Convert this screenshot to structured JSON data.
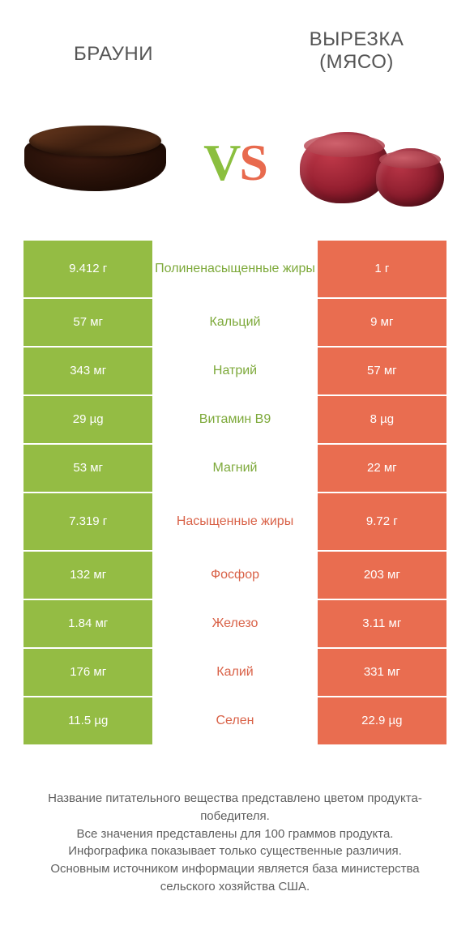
{
  "colors": {
    "green": "#94bc44",
    "orange": "#e96d50",
    "green_text": "#7da93a",
    "orange_text": "#d96248"
  },
  "left_title": "БРАУНИ",
  "right_title_line1": "ВЫРЕЗКА",
  "right_title_line2": "(МЯСО)",
  "rows": [
    {
      "left": "9.412 г",
      "mid": "Полиненасыщенные жиры",
      "right": "1 г",
      "winner": "left",
      "tall": true
    },
    {
      "left": "57 мг",
      "mid": "Кальций",
      "right": "9 мг",
      "winner": "left",
      "tall": false
    },
    {
      "left": "343 мг",
      "mid": "Натрий",
      "right": "57 мг",
      "winner": "left",
      "tall": false
    },
    {
      "left": "29 µg",
      "mid": "Витамин B9",
      "right": "8 µg",
      "winner": "left",
      "tall": false
    },
    {
      "left": "53 мг",
      "mid": "Магний",
      "right": "22 мг",
      "winner": "left",
      "tall": false
    },
    {
      "left": "7.319 г",
      "mid": "Насыщенные жиры",
      "right": "9.72 г",
      "winner": "right",
      "tall": true
    },
    {
      "left": "132 мг",
      "mid": "Фосфор",
      "right": "203 мг",
      "winner": "right",
      "tall": false
    },
    {
      "left": "1.84 мг",
      "mid": "Железо",
      "right": "3.11 мг",
      "winner": "right",
      "tall": false
    },
    {
      "left": "176 мг",
      "mid": "Калий",
      "right": "331 мг",
      "winner": "right",
      "tall": false
    },
    {
      "left": "11.5 µg",
      "mid": "Селен",
      "right": "22.9 µg",
      "winner": "right",
      "tall": false
    }
  ],
  "footer": [
    "Название питательного вещества представлено цветом продукта-победителя.",
    "Все значения представлены для 100 граммов продукта.",
    "Инфографика показывает только существенные различия.",
    "Основным источником информации является база министерства сельского хозяйства США."
  ]
}
